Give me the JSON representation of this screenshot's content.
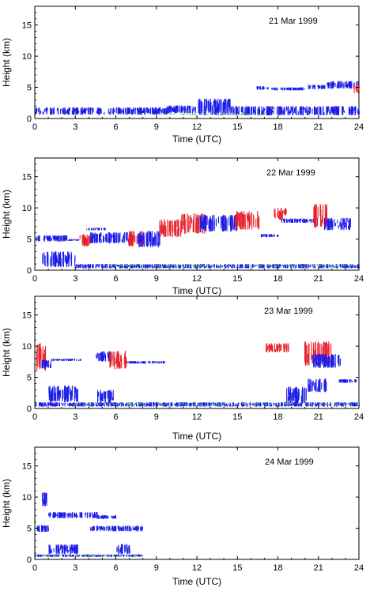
{
  "chart_data": [
    {
      "type": "scatter",
      "title": "21 Mar 1999",
      "xlabel": "Time (UTC)",
      "ylabel": "Height (km)",
      "xlim": [
        0,
        24
      ],
      "ylim": [
        0,
        18
      ],
      "xticks": [
        0,
        3,
        6,
        9,
        12,
        15,
        18,
        21,
        24
      ],
      "yticks": [
        0,
        5,
        10,
        15
      ],
      "colors": {
        "depolarizing": "#e8202a",
        "cloud": "#1c1ce8",
        "aerosol": "#43d04a"
      },
      "features": [
        {
          "type": "blue",
          "t0": 0.0,
          "t1": 9.8,
          "h0": 0.6,
          "h1": 1.8
        },
        {
          "type": "blue",
          "t0": 9.8,
          "t1": 12.0,
          "h0": 0.8,
          "h1": 2.1
        },
        {
          "type": "blue",
          "t0": 12.0,
          "t1": 14.5,
          "h0": 0.5,
          "h1": 3.2
        },
        {
          "type": "blue",
          "t0": 14.5,
          "t1": 24.0,
          "h0": 0.5,
          "h1": 2.0
        },
        {
          "type": "blue",
          "t0": 16.4,
          "t1": 17.3,
          "h0": 4.6,
          "h1": 5.2
        },
        {
          "type": "blue",
          "t0": 17.5,
          "t1": 20.0,
          "h0": 4.5,
          "h1": 5.0
        },
        {
          "type": "blue",
          "t0": 20.2,
          "t1": 21.6,
          "h0": 4.7,
          "h1": 5.4
        },
        {
          "type": "blue",
          "t0": 21.6,
          "t1": 23.9,
          "h0": 4.8,
          "h1": 6.0
        },
        {
          "type": "red",
          "t0": 23.6,
          "t1": 24.0,
          "h0": 4.0,
          "h1": 5.4
        },
        {
          "type": "green",
          "t0": 9.0,
          "t1": 17.0,
          "h0": 0.5,
          "h1": 0.8
        }
      ]
    },
    {
      "type": "scatter",
      "title": "22 Mar 1999",
      "xlabel": "Time (UTC)",
      "ylabel": "Height (km)",
      "xlim": [
        0,
        24
      ],
      "ylim": [
        0,
        18
      ],
      "xticks": [
        0,
        3,
        6,
        9,
        12,
        15,
        18,
        21,
        24
      ],
      "yticks": [
        0,
        5,
        10,
        15
      ],
      "colors": {
        "depolarizing": "#e8202a",
        "cloud": "#1c1ce8",
        "aerosol": "#43d04a"
      },
      "features": [
        {
          "type": "blue",
          "t0": 0.0,
          "t1": 2.4,
          "h0": 4.6,
          "h1": 5.6
        },
        {
          "type": "blue",
          "t0": 2.4,
          "t1": 3.3,
          "h0": 4.7,
          "h1": 5.0
        },
        {
          "type": "blue",
          "t0": 3.8,
          "t1": 5.2,
          "h0": 6.4,
          "h1": 6.8
        },
        {
          "type": "blue",
          "t0": 0.5,
          "t1": 3.0,
          "h0": 0.5,
          "h1": 3.0
        },
        {
          "type": "blue",
          "t0": 3.0,
          "t1": 24.0,
          "h0": 0.3,
          "h1": 1.0
        },
        {
          "type": "red",
          "t0": 3.3,
          "t1": 4.1,
          "h0": 3.8,
          "h1": 5.8
        },
        {
          "type": "blue",
          "t0": 4.1,
          "t1": 7.2,
          "h0": 4.3,
          "h1": 6.1
        },
        {
          "type": "red",
          "t0": 6.9,
          "t1": 8.0,
          "h0": 3.8,
          "h1": 6.3
        },
        {
          "type": "blue",
          "t0": 7.6,
          "t1": 9.3,
          "h0": 3.7,
          "h1": 6.3
        },
        {
          "type": "red",
          "t0": 9.2,
          "t1": 10.8,
          "h0": 5.3,
          "h1": 8.2
        },
        {
          "type": "red",
          "t0": 10.8,
          "t1": 12.6,
          "h0": 5.8,
          "h1": 9.1
        },
        {
          "type": "blue",
          "t0": 12.2,
          "t1": 14.9,
          "h0": 6.2,
          "h1": 8.9
        },
        {
          "type": "red",
          "t0": 14.8,
          "t1": 16.6,
          "h0": 6.5,
          "h1": 9.5
        },
        {
          "type": "blue",
          "t0": 16.7,
          "t1": 18.0,
          "h0": 5.3,
          "h1": 5.8
        },
        {
          "type": "red",
          "t0": 17.7,
          "t1": 18.6,
          "h0": 8.0,
          "h1": 10.0
        },
        {
          "type": "blue",
          "t0": 18.2,
          "t1": 20.8,
          "h0": 7.6,
          "h1": 8.3
        },
        {
          "type": "red",
          "t0": 20.6,
          "t1": 21.7,
          "h0": 6.8,
          "h1": 10.6
        },
        {
          "type": "blue",
          "t0": 21.4,
          "t1": 23.4,
          "h0": 6.4,
          "h1": 8.4
        },
        {
          "type": "green",
          "t0": 5.0,
          "t1": 24.0,
          "h0": 0.4,
          "h1": 0.9
        }
      ]
    },
    {
      "type": "scatter",
      "title": "23 Mar 1999",
      "xlabel": "Time (UTC)",
      "ylabel": "Height (km)",
      "xlim": [
        0,
        24
      ],
      "ylim": [
        0,
        18
      ],
      "xticks": [
        0,
        3,
        6,
        9,
        12,
        15,
        18,
        21,
        24
      ],
      "yticks": [
        0,
        5,
        10,
        15
      ],
      "colors": {
        "depolarizing": "#e8202a",
        "cloud": "#1c1ce8",
        "aerosol": "#43d04a"
      },
      "features": [
        {
          "type": "red",
          "t0": 0.1,
          "t1": 0.8,
          "h0": 6.0,
          "h1": 10.5
        },
        {
          "type": "blue",
          "t0": 0.4,
          "t1": 1.2,
          "h0": 6.4,
          "h1": 7.8
        },
        {
          "type": "blue",
          "t0": 1.2,
          "t1": 3.4,
          "h0": 7.6,
          "h1": 8.0
        },
        {
          "type": "blue",
          "t0": 4.5,
          "t1": 5.8,
          "h0": 7.5,
          "h1": 9.2
        },
        {
          "type": "red",
          "t0": 5.5,
          "t1": 6.8,
          "h0": 6.3,
          "h1": 9.3
        },
        {
          "type": "blue",
          "t0": 6.8,
          "t1": 9.6,
          "h0": 7.2,
          "h1": 7.6
        },
        {
          "type": "blue",
          "t0": 0.0,
          "t1": 24.0,
          "h0": 0.3,
          "h1": 1.0
        },
        {
          "type": "blue",
          "t0": 1.0,
          "t1": 3.2,
          "h0": 1.0,
          "h1": 3.7
        },
        {
          "type": "blue",
          "t0": 4.6,
          "t1": 5.8,
          "h0": 0.8,
          "h1": 3.0
        },
        {
          "type": "blue",
          "t0": 18.6,
          "t1": 20.1,
          "h0": 0.8,
          "h1": 3.5
        },
        {
          "type": "blue",
          "t0": 20.2,
          "t1": 21.6,
          "h0": 2.6,
          "h1": 4.8
        },
        {
          "type": "red",
          "t0": 17.1,
          "t1": 18.8,
          "h0": 9.0,
          "h1": 10.5
        },
        {
          "type": "red",
          "t0": 19.8,
          "t1": 21.9,
          "h0": 6.8,
          "h1": 10.8
        },
        {
          "type": "blue",
          "t0": 20.5,
          "t1": 22.6,
          "h0": 6.5,
          "h1": 8.8
        },
        {
          "type": "blue",
          "t0": 22.5,
          "t1": 23.8,
          "h0": 4.1,
          "h1": 4.7
        },
        {
          "type": "green",
          "t0": 3.0,
          "t1": 24.0,
          "h0": 0.4,
          "h1": 0.9
        }
      ]
    },
    {
      "type": "scatter",
      "title": "24 Mar 1999",
      "xlabel": "Time (UTC)",
      "ylabel": "Height (km)",
      "xlim": [
        0,
        24
      ],
      "ylim": [
        0,
        18
      ],
      "xticks": [
        0,
        3,
        6,
        9,
        12,
        15,
        18,
        21,
        24
      ],
      "yticks": [
        0,
        5,
        10,
        15
      ],
      "colors": {
        "depolarizing": "#e8202a",
        "cloud": "#1c1ce8",
        "aerosol": "#43d04a"
      },
      "features": [
        {
          "type": "blue",
          "t0": 0.0,
          "t1": 1.0,
          "h0": 4.4,
          "h1": 5.5
        },
        {
          "type": "blue",
          "t0": 0.4,
          "t1": 0.9,
          "h0": 8.5,
          "h1": 10.8
        },
        {
          "type": "blue",
          "t0": 1.0,
          "t1": 4.6,
          "h0": 6.6,
          "h1": 7.6
        },
        {
          "type": "blue",
          "t0": 4.6,
          "t1": 6.0,
          "h0": 6.5,
          "h1": 7.1
        },
        {
          "type": "blue",
          "t0": 4.1,
          "t1": 8.0,
          "h0": 4.5,
          "h1": 5.4
        },
        {
          "type": "blue",
          "t0": 1.0,
          "t1": 3.2,
          "h0": 0.8,
          "h1": 2.4
        },
        {
          "type": "blue",
          "t0": 6.0,
          "t1": 7.1,
          "h0": 0.8,
          "h1": 2.5
        },
        {
          "type": "blue",
          "t0": 0.0,
          "t1": 8.0,
          "h0": 0.4,
          "h1": 0.8
        },
        {
          "type": "green",
          "t0": 0.5,
          "t1": 7.5,
          "h0": 0.4,
          "h1": 0.8
        }
      ]
    }
  ]
}
